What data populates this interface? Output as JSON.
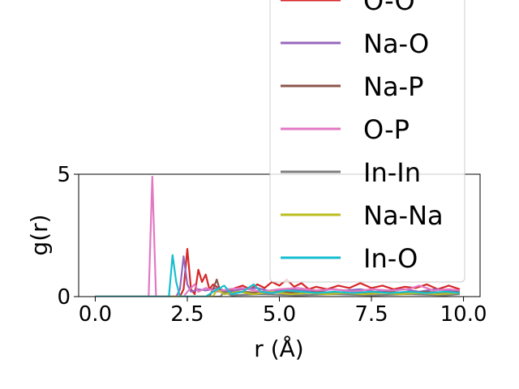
{
  "chart_data": {
    "type": "line",
    "xlabel": "r (Å)",
    "ylabel": "g(r)",
    "xlim": [
      -0.45,
      10.45
    ],
    "ylim": [
      0,
      5
    ],
    "xticks": [
      {
        "value": 0.0,
        "label": "0.0"
      },
      {
        "value": 2.5,
        "label": "2.5"
      },
      {
        "value": 5.0,
        "label": "5.0"
      },
      {
        "value": 7.5,
        "label": "7.5"
      },
      {
        "value": 10.0,
        "label": "10.0"
      }
    ],
    "yticks": [
      {
        "value": 0,
        "label": "0"
      },
      {
        "value": 5,
        "label": "5"
      }
    ],
    "grid": false,
    "legend_position": "upper-right",
    "series": [
      {
        "name": "O-O",
        "color": "#d62728",
        "points": [
          [
            0,
            0
          ],
          [
            2.3,
            0
          ],
          [
            2.4,
            0.3
          ],
          [
            2.5,
            1.95
          ],
          [
            2.6,
            0.3
          ],
          [
            2.7,
            0.1
          ],
          [
            2.8,
            1.1
          ],
          [
            2.9,
            0.6
          ],
          [
            3.0,
            0.9
          ],
          [
            3.1,
            0.3
          ],
          [
            3.2,
            0.5
          ],
          [
            3.4,
            0.3
          ],
          [
            3.6,
            0.2
          ],
          [
            3.8,
            0.35
          ],
          [
            4.0,
            0.45
          ],
          [
            4.2,
            0.3
          ],
          [
            4.4,
            0.5
          ],
          [
            4.6,
            0.35
          ],
          [
            4.8,
            0.6
          ],
          [
            5.0,
            0.45
          ],
          [
            5.2,
            0.7
          ],
          [
            5.4,
            0.4
          ],
          [
            5.6,
            0.55
          ],
          [
            5.8,
            0.3
          ],
          [
            6.0,
            0.4
          ],
          [
            6.3,
            0.3
          ],
          [
            6.6,
            0.45
          ],
          [
            6.9,
            0.35
          ],
          [
            7.2,
            0.55
          ],
          [
            7.5,
            0.35
          ],
          [
            7.8,
            0.45
          ],
          [
            8.1,
            0.3
          ],
          [
            8.4,
            0.4
          ],
          [
            8.7,
            0.35
          ],
          [
            9.0,
            0.5
          ],
          [
            9.3,
            0.3
          ],
          [
            9.6,
            0.45
          ],
          [
            9.9,
            0.3
          ]
        ]
      },
      {
        "name": "Na-O",
        "color": "#9467bd",
        "points": [
          [
            0,
            0
          ],
          [
            2.2,
            0
          ],
          [
            2.3,
            0.3
          ],
          [
            2.4,
            1.65
          ],
          [
            2.5,
            0.5
          ],
          [
            2.6,
            0.2
          ],
          [
            2.8,
            0.3
          ],
          [
            3.0,
            0.25
          ],
          [
            3.3,
            0.35
          ],
          [
            3.6,
            0.2
          ],
          [
            4.0,
            0.3
          ],
          [
            4.4,
            0.35
          ],
          [
            4.8,
            0.2
          ],
          [
            5.2,
            0.3
          ],
          [
            5.6,
            0.25
          ],
          [
            6.0,
            0.2
          ],
          [
            6.4,
            0.3
          ],
          [
            6.8,
            0.25
          ],
          [
            7.2,
            0.3
          ],
          [
            7.6,
            0.2
          ],
          [
            8.0,
            0.25
          ],
          [
            8.4,
            0.3
          ],
          [
            8.8,
            0.2
          ],
          [
            9.2,
            0.3
          ],
          [
            9.6,
            0.25
          ],
          [
            9.9,
            0.2
          ]
        ]
      },
      {
        "name": "Na-P",
        "color": "#8c564b",
        "points": [
          [
            0,
            0
          ],
          [
            3.1,
            0
          ],
          [
            3.2,
            0.3
          ],
          [
            3.3,
            0.7
          ],
          [
            3.4,
            0.2
          ],
          [
            3.6,
            0.15
          ],
          [
            4.0,
            0.2
          ],
          [
            4.5,
            0.15
          ],
          [
            5.0,
            0.2
          ],
          [
            5.5,
            0.15
          ],
          [
            6.0,
            0.2
          ],
          [
            6.5,
            0.15
          ],
          [
            7.0,
            0.2
          ],
          [
            7.5,
            0.15
          ],
          [
            8.0,
            0.2
          ],
          [
            8.5,
            0.15
          ],
          [
            9.0,
            0.2
          ],
          [
            9.5,
            0.15
          ],
          [
            9.9,
            0.2
          ]
        ]
      },
      {
        "name": "O-P",
        "color": "#e377c2",
        "points": [
          [
            0,
            0
          ],
          [
            1.45,
            0
          ],
          [
            1.55,
            4.9
          ],
          [
            1.65,
            0
          ],
          [
            2.4,
            0
          ],
          [
            2.5,
            0.2
          ],
          [
            2.7,
            0.5
          ],
          [
            2.8,
            0.2
          ],
          [
            3.0,
            0.35
          ],
          [
            3.3,
            0.2
          ],
          [
            3.6,
            0.3
          ],
          [
            4.0,
            0.35
          ],
          [
            4.5,
            0.2
          ],
          [
            5.0,
            0.3
          ],
          [
            5.5,
            0.35
          ],
          [
            6.0,
            0.25
          ],
          [
            6.5,
            0.3
          ],
          [
            7.0,
            0.2
          ],
          [
            7.5,
            0.3
          ],
          [
            8.0,
            0.25
          ],
          [
            8.5,
            0.3
          ],
          [
            8.8,
            0.45
          ],
          [
            9.2,
            0.25
          ],
          [
            9.6,
            0.3
          ],
          [
            9.9,
            0.25
          ]
        ]
      },
      {
        "name": "In-In",
        "color": "#7f7f7f",
        "points": [
          [
            0,
            0
          ],
          [
            3.4,
            0
          ],
          [
            3.5,
            0.2
          ],
          [
            3.7,
            0.05
          ],
          [
            4.5,
            0.1
          ],
          [
            5.5,
            0.05
          ],
          [
            6.5,
            0.1
          ],
          [
            7.5,
            0.05
          ],
          [
            8.5,
            0.1
          ],
          [
            9.5,
            0.05
          ],
          [
            9.9,
            0.1
          ]
        ]
      },
      {
        "name": "Na-Na",
        "color": "#bcbd22",
        "points": [
          [
            0,
            0
          ],
          [
            3.2,
            0
          ],
          [
            3.3,
            0.3
          ],
          [
            3.5,
            0.1
          ],
          [
            3.9,
            0.2
          ],
          [
            4.3,
            0.1
          ],
          [
            4.8,
            0.2
          ],
          [
            5.3,
            0.1
          ],
          [
            5.8,
            0.15
          ],
          [
            6.3,
            0.1
          ],
          [
            6.8,
            0.15
          ],
          [
            7.3,
            0.1
          ],
          [
            7.8,
            0.15
          ],
          [
            8.3,
            0.1
          ],
          [
            8.8,
            0.15
          ],
          [
            9.3,
            0.1
          ],
          [
            9.9,
            0.15
          ]
        ]
      },
      {
        "name": "In-O",
        "color": "#17becf",
        "points": [
          [
            0,
            0
          ],
          [
            2.0,
            0
          ],
          [
            2.1,
            1.7
          ],
          [
            2.2,
            0.6
          ],
          [
            2.3,
            0
          ],
          [
            3.0,
            0
          ],
          [
            3.2,
            0.2
          ],
          [
            3.5,
            0.45
          ],
          [
            3.7,
            0.1
          ],
          [
            4.0,
            0.2
          ],
          [
            4.3,
            0.5
          ],
          [
            4.5,
            0.2
          ],
          [
            4.8,
            0.15
          ],
          [
            5.2,
            0.25
          ],
          [
            5.6,
            0.2
          ],
          [
            6.0,
            0.15
          ],
          [
            6.5,
            0.2
          ],
          [
            7.0,
            0.15
          ],
          [
            7.5,
            0.2
          ],
          [
            8.0,
            0.15
          ],
          [
            8.5,
            0.2
          ],
          [
            9.0,
            0.15
          ],
          [
            9.5,
            0.2
          ],
          [
            9.9,
            0.15
          ]
        ]
      }
    ],
    "legend_visible_entries": [
      "O-O",
      "Na-O",
      "Na-P",
      "O-P",
      "In-In",
      "Na-Na",
      "In-O"
    ]
  }
}
